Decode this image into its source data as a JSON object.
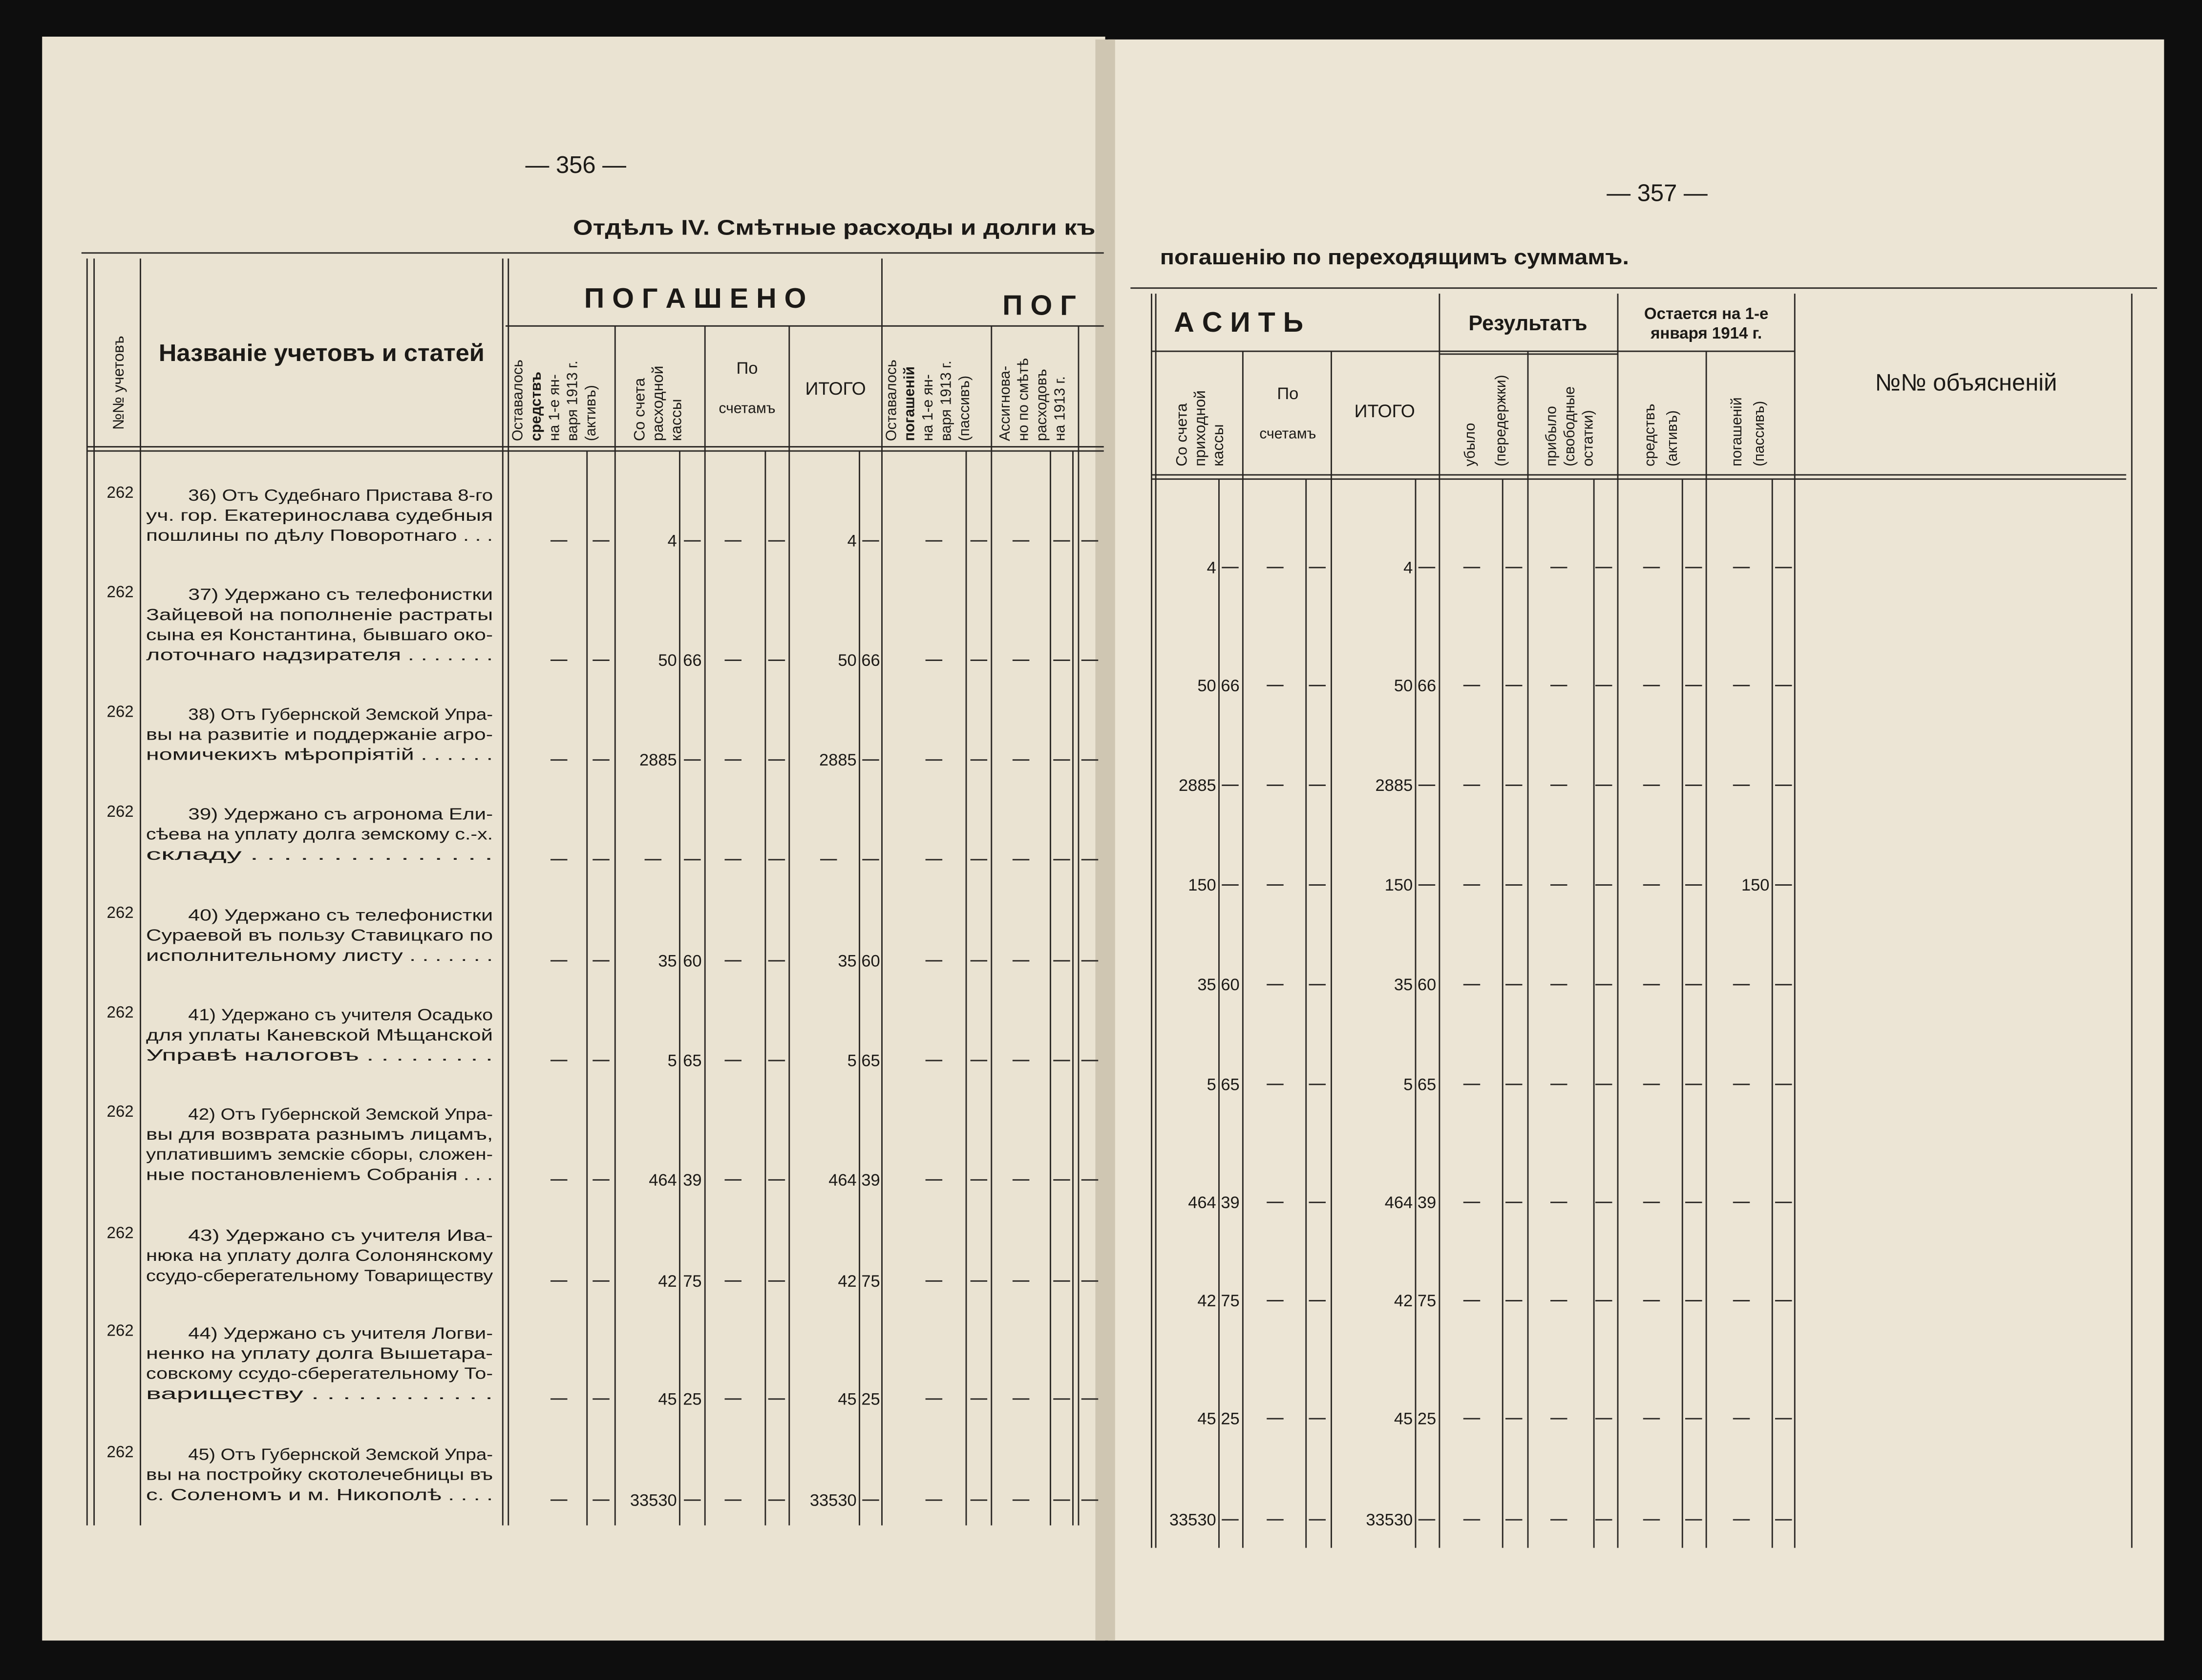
{
  "left_page": {
    "page_number": "— 356 —",
    "title": "Отдѣлъ IV. Смѣтные расходы и долги къ"
  },
  "right_page": {
    "page_number": "— 357 —",
    "title": "погашенію по переходящимъ суммамъ."
  },
  "table": {
    "headers": {
      "account": "№№ учетовъ",
      "name": "Названіе учетовъ и статей",
      "repaid": "П О Г А Ш Е Н О",
      "to_repay_left": "П О Г",
      "to_repay_right": "А С И Т Ь",
      "remaining_assets_1913": [
        "Оставалось",
        "средствъ",
        "на 1-е ян-",
        "варя 1913 г.",
        "(активъ)"
      ],
      "left_cash": [
        "Со счета",
        "расходной",
        "кассы"
      ],
      "left_accounts": [
        "По",
        "счетамъ"
      ],
      "left_total": "ИТОГО",
      "remaining_liab_1913": [
        "Оставалось",
        "погашеній",
        "на 1-е ян-",
        "варя 1913 г.",
        "(пассивъ)"
      ],
      "assigned_1913": [
        "Ассигнова-",
        "но по смѣтѣ",
        "расходовъ",
        "на 1913 г."
      ],
      "right_cash": [
        "Со счета",
        "приходной",
        "кассы"
      ],
      "right_accounts": [
        "По",
        "счетамъ"
      ],
      "right_total": "ИТОГО",
      "result": "Результатъ",
      "decrease": [
        "убыло",
        "(передержки)"
      ],
      "increase": [
        "прибыло",
        "(свободные",
        "остатки)"
      ],
      "remaining_1914": [
        "Остается на 1-е",
        "января 1914 г."
      ],
      "assets": [
        "средствъ",
        "(активъ)"
      ],
      "liabilities": [
        "погашеній",
        "(пассивъ)"
      ],
      "explanations": "№№ объясненій"
    },
    "rows": [
      {
        "account": "262",
        "lines": [
          "36) Отъ Судебнаго Пристава 8-го",
          "уч. гор. Екатеринослава судебныя",
          "пошлины по дѣлу Поворотнаго . . ."
        ],
        "left_cash_rub": 4,
        "left_total_rub": 4,
        "right_cash_rub": 4,
        "right_total_rub": 4
      },
      {
        "account": "262",
        "lines": [
          "37) Удержано съ телефонистки",
          "Зайцевой на пополненіе растраты",
          "сына ея Константина, бывшаго око-",
          "лоточнаго надзирателя . . . . . . ."
        ],
        "left_cash_rub": 50,
        "left_cash_kop": 66,
        "left_total_rub": 50,
        "left_total_kop": 66,
        "right_cash_rub": 50,
        "right_cash_kop": 66,
        "right_total_rub": 50,
        "right_total_kop": 66
      },
      {
        "account": "262",
        "lines": [
          "38) Отъ Губернской Земской Упра-",
          "вы на развитіе и поддержаніе агро-",
          "номичекихъ мѣропріятій . . . . . ."
        ],
        "left_cash_rub": 2885,
        "left_total_rub": 2885,
        "right_cash_rub": 2885,
        "right_total_rub": 2885
      },
      {
        "account": "262",
        "lines": [
          "39) Удержано съ агронома Ели-",
          "сѣева на уплату долга земскому с.-х.",
          "складу . . . . . . . . . . . . . . ."
        ],
        "right_cash_rub": 150,
        "right_total_rub": 150,
        "right_liab_rub": 150
      },
      {
        "account": "262",
        "lines": [
          "40) Удержано съ телефонистки",
          "Сураевой въ пользу Ставицкаго по",
          "исполнительному листу . . . . . . ."
        ],
        "left_cash_rub": 35,
        "left_cash_kop": 60,
        "left_total_rub": 35,
        "left_total_kop": 60,
        "right_cash_rub": 35,
        "right_cash_kop": 60,
        "right_total_rub": 35,
        "right_total_kop": 60
      },
      {
        "account": "262",
        "lines": [
          "41) Удержано съ учителя Осадько",
          "для уплаты Каневской Мѣщанской",
          "Управѣ налоговъ . . . . . . . . ."
        ],
        "left_cash_rub": 5,
        "left_cash_kop": 65,
        "left_total_rub": 5,
        "left_total_kop": 65,
        "right_cash_rub": 5,
        "right_cash_kop": 65,
        "right_total_rub": 5,
        "right_total_kop": 65
      },
      {
        "account": "262",
        "lines": [
          "42) Отъ Губернской Земской Упра-",
          "вы для возврата разнымъ лицамъ,",
          "уплатившимъ земскіе сборы, сложен-",
          "ные постановленіемъ Собранія . . ."
        ],
        "left_cash_rub": 464,
        "left_cash_kop": 39,
        "left_total_rub": 464,
        "left_total_kop": 39,
        "right_cash_rub": 464,
        "right_cash_kop": 39,
        "right_total_rub": 464,
        "right_total_kop": 39
      },
      {
        "account": "262",
        "lines": [
          "43) Удержано съ учителя Ива-",
          "нюка на уплату долга Солонянскому",
          "ссудо-сберегательному Товариществу"
        ],
        "left_cash_rub": 42,
        "left_cash_kop": 75,
        "left_total_rub": 42,
        "left_total_kop": 75,
        "right_cash_rub": 42,
        "right_cash_kop": 75,
        "right_total_rub": 42,
        "right_total_kop": 75
      },
      {
        "account": "262",
        "lines": [
          "44) Удержано съ учителя Логви-",
          "ненко на уплату долга Вышетара-",
          "совскому ссудо-сберегательному То-",
          "вариществу . . . . . . . . . . . ."
        ],
        "left_cash_rub": 45,
        "left_cash_kop": 25,
        "left_total_rub": 45,
        "left_total_kop": 25,
        "right_cash_rub": 45,
        "right_cash_kop": 25,
        "right_total_rub": 45,
        "right_total_kop": 25
      },
      {
        "account": "262",
        "lines": [
          "45) Отъ Губернской Земской Упра-",
          "вы на постройку скотолечебницы въ",
          "с. Соленомъ и м. Никополѣ . . . ."
        ],
        "left_cash_rub": 33530,
        "left_total_rub": 33530,
        "right_cash_rub": 33530,
        "right_total_rub": 33530
      }
    ]
  }
}
